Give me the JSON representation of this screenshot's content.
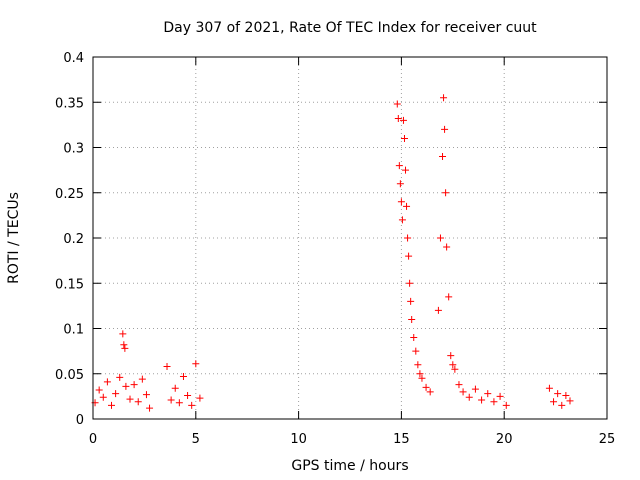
{
  "chart_data": {
    "type": "scatter",
    "title": "Day 307 of 2021, Rate Of TEC Index for receiver cuut",
    "xlabel": "GPS time / hours",
    "ylabel": "ROTI / TECUs",
    "xlim": [
      0,
      25
    ],
    "ylim": [
      0,
      0.4
    ],
    "xticks": [
      "0",
      "5",
      "10",
      "15",
      "20",
      "25"
    ],
    "yticks": [
      "0",
      "0.05",
      "0.1",
      "0.15",
      "0.2",
      "0.25",
      "0.3",
      "0.35",
      "0.4"
    ],
    "grid": true,
    "marker": "+",
    "color": "#ff0000",
    "series": [
      {
        "points": [
          [
            0.1,
            0.018
          ],
          [
            0.3,
            0.032
          ],
          [
            0.5,
            0.024
          ],
          [
            0.7,
            0.041
          ],
          [
            0.9,
            0.015
          ],
          [
            1.1,
            0.028
          ],
          [
            1.3,
            0.046
          ],
          [
            1.45,
            0.094
          ],
          [
            1.5,
            0.082
          ],
          [
            1.55,
            0.078
          ],
          [
            1.6,
            0.036
          ],
          [
            1.8,
            0.022
          ],
          [
            2.0,
            0.038
          ],
          [
            2.2,
            0.019
          ],
          [
            2.4,
            0.044
          ],
          [
            2.6,
            0.027
          ],
          [
            2.75,
            0.012
          ],
          [
            3.6,
            0.058
          ],
          [
            3.8,
            0.021
          ],
          [
            4.0,
            0.034
          ],
          [
            4.2,
            0.018
          ],
          [
            4.4,
            0.047
          ],
          [
            4.6,
            0.026
          ],
          [
            4.8,
            0.015
          ],
          [
            5.0,
            0.061
          ],
          [
            5.2,
            0.023
          ],
          [
            14.8,
            0.348
          ],
          [
            14.85,
            0.332
          ],
          [
            14.9,
            0.28
          ],
          [
            14.95,
            0.26
          ],
          [
            15.0,
            0.24
          ],
          [
            15.05,
            0.22
          ],
          [
            15.1,
            0.33
          ],
          [
            15.15,
            0.31
          ],
          [
            15.2,
            0.275
          ],
          [
            15.25,
            0.235
          ],
          [
            15.3,
            0.2
          ],
          [
            15.35,
            0.18
          ],
          [
            15.4,
            0.15
          ],
          [
            15.45,
            0.13
          ],
          [
            15.5,
            0.11
          ],
          [
            15.6,
            0.09
          ],
          [
            15.7,
            0.075
          ],
          [
            15.8,
            0.06
          ],
          [
            15.9,
            0.05
          ],
          [
            16.0,
            0.045
          ],
          [
            16.2,
            0.035
          ],
          [
            16.4,
            0.03
          ],
          [
            16.8,
            0.12
          ],
          [
            16.9,
            0.2
          ],
          [
            17.0,
            0.29
          ],
          [
            17.05,
            0.355
          ],
          [
            17.1,
            0.32
          ],
          [
            17.15,
            0.25
          ],
          [
            17.2,
            0.19
          ],
          [
            17.3,
            0.135
          ],
          [
            17.4,
            0.07
          ],
          [
            17.5,
            0.06
          ],
          [
            17.6,
            0.055
          ],
          [
            17.8,
            0.038
          ],
          [
            18.0,
            0.03
          ],
          [
            18.3,
            0.024
          ],
          [
            18.6,
            0.033
          ],
          [
            18.9,
            0.021
          ],
          [
            19.2,
            0.028
          ],
          [
            19.5,
            0.019
          ],
          [
            19.8,
            0.025
          ],
          [
            20.1,
            0.015
          ],
          [
            22.2,
            0.034
          ],
          [
            22.4,
            0.019
          ],
          [
            22.6,
            0.028
          ],
          [
            22.8,
            0.015
          ],
          [
            23.0,
            0.026
          ],
          [
            23.2,
            0.02
          ]
        ]
      }
    ]
  }
}
